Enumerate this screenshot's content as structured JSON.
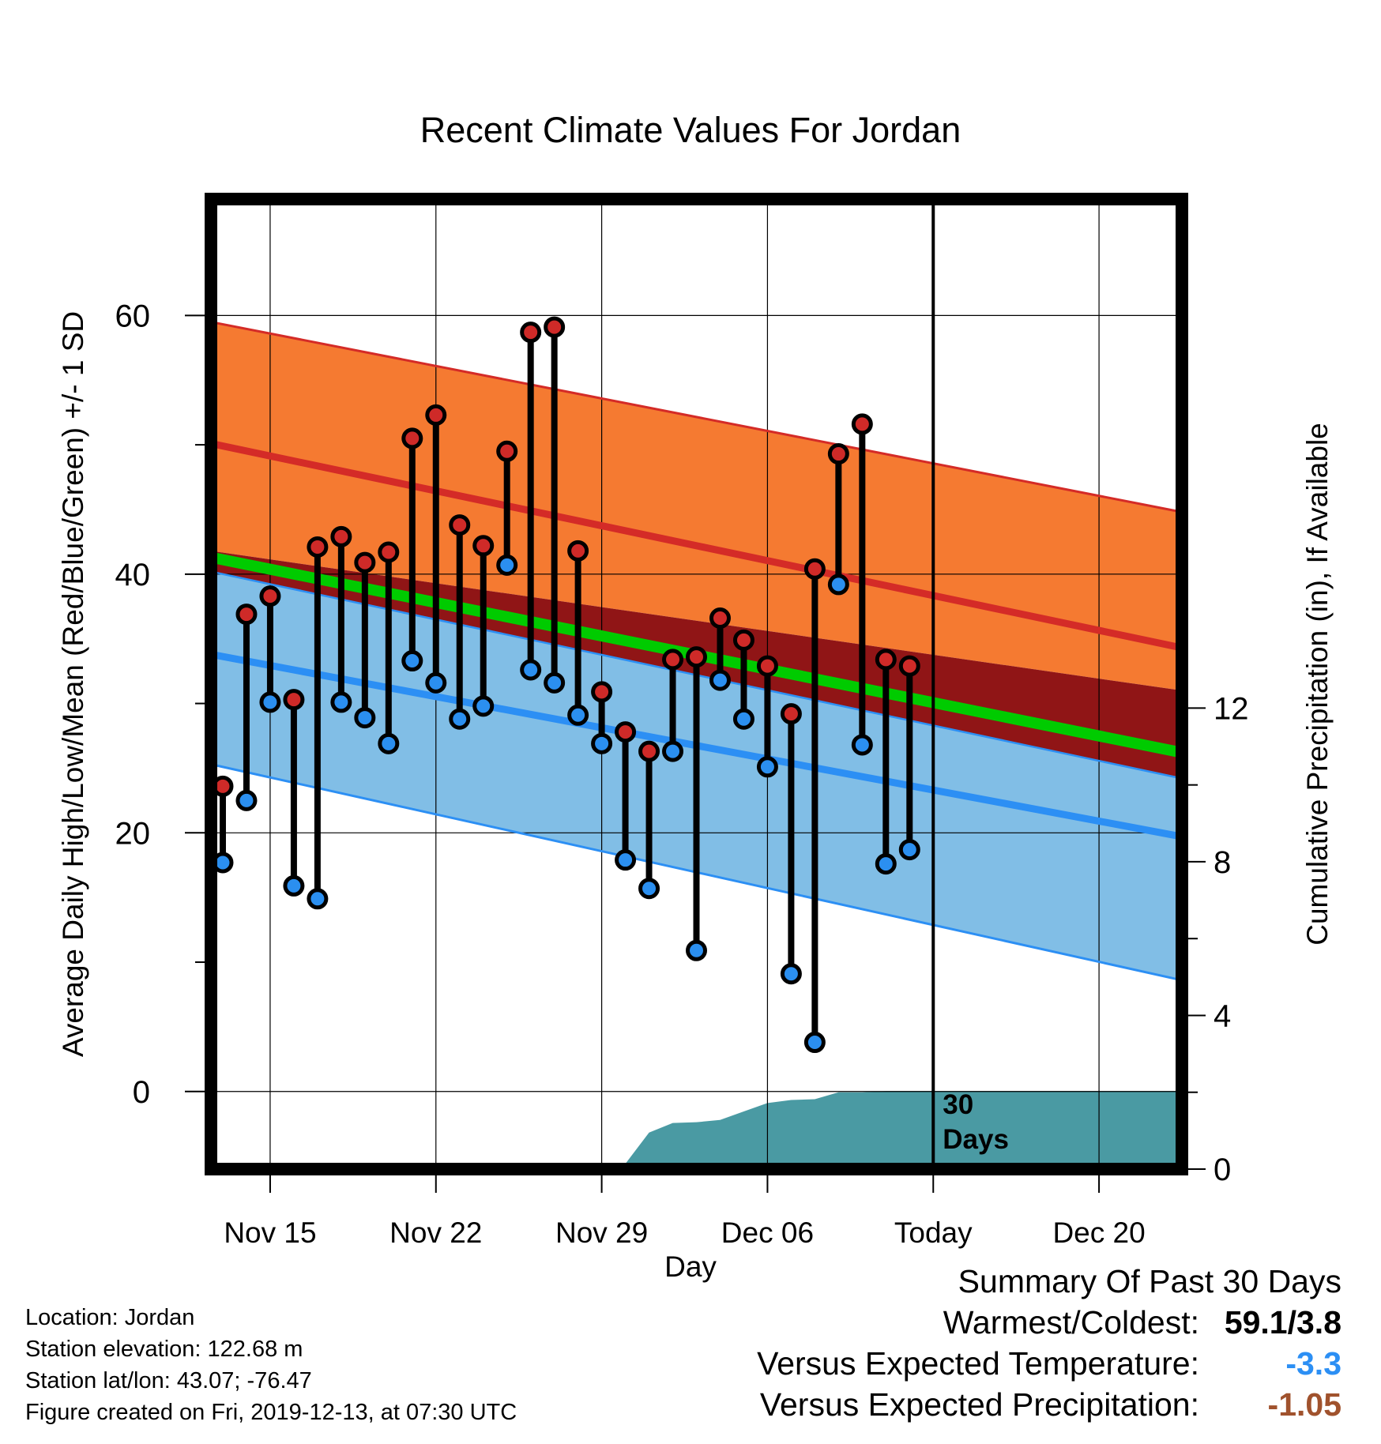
{
  "chart_data": {
    "type": "line",
    "title": "Recent Climate Values For Jordan",
    "xlabel": "Day",
    "ylabel_left": "Average Daily High/Low/Mean (Red/Blue/Green) +/- 1 SD",
    "ylabel_right": "Cumulative Precipitation (in), If Available",
    "x_start": "Nov 12",
    "x_end": "Dec 22",
    "ylim_left": [
      -6,
      69
    ],
    "ylim_right": [
      0,
      25.25
    ],
    "yticks_left": [
      0,
      20,
      40,
      60
    ],
    "yticks_right": [
      0,
      4,
      8,
      12
    ],
    "xtick_labels": [
      {
        "day": 3,
        "label": "Nov 15"
      },
      {
        "day": 10,
        "label": "Nov 22"
      },
      {
        "day": 17,
        "label": "Nov 29"
      },
      {
        "day": 24,
        "label": "Dec 06"
      },
      {
        "day": 31,
        "label": "Today"
      },
      {
        "day": 38,
        "label": "Dec 20"
      }
    ],
    "today_day": 31,
    "today_annotation": "30\nDays",
    "grid": true,
    "normals": {
      "day_start": 0.5,
      "day_end": 41.5,
      "high_mean": [
        50.1,
        34.3
      ],
      "high_upper": [
        59.5,
        44.8
      ],
      "high_lower": [
        41.8,
        31.0
      ],
      "low_mean": [
        33.8,
        19.7
      ],
      "low_upper": [
        40.2,
        24.2
      ],
      "low_lower": [
        25.3,
        8.6
      ],
      "avg_mean": [
        41.3,
        26.2
      ]
    },
    "observed": [
      {
        "day": 1,
        "high": 23.6,
        "low": 17.7
      },
      {
        "day": 2,
        "high": 36.9,
        "low": 22.5
      },
      {
        "day": 3,
        "high": 38.3,
        "low": 30.1
      },
      {
        "day": 4,
        "high": 30.3,
        "low": 15.9
      },
      {
        "day": 5,
        "high": 42.1,
        "low": 14.9
      },
      {
        "day": 6,
        "high": 42.9,
        "low": 30.1
      },
      {
        "day": 7,
        "high": 40.9,
        "low": 28.9
      },
      {
        "day": 8,
        "high": 41.7,
        "low": 26.9
      },
      {
        "day": 9,
        "high": 50.5,
        "low": 33.3
      },
      {
        "day": 10,
        "high": 52.3,
        "low": 31.6
      },
      {
        "day": 11,
        "high": 43.8,
        "low": 28.8
      },
      {
        "day": 12,
        "high": 42.2,
        "low": 29.8
      },
      {
        "day": 13,
        "high": 49.5,
        "low": 40.7
      },
      {
        "day": 14,
        "high": 58.7,
        "low": 32.6
      },
      {
        "day": 15,
        "high": 59.1,
        "low": 31.6
      },
      {
        "day": 16,
        "high": 41.8,
        "low": 29.1
      },
      {
        "day": 17,
        "high": 30.9,
        "low": 26.9
      },
      {
        "day": 18,
        "high": 27.8,
        "low": 17.9
      },
      {
        "day": 19,
        "high": 26.3,
        "low": 15.7
      },
      {
        "day": 20,
        "high": 33.4,
        "low": 26.3
      },
      {
        "day": 21,
        "high": 33.6,
        "low": 10.9
      },
      {
        "day": 22,
        "high": 36.6,
        "low": 31.8
      },
      {
        "day": 23,
        "high": 34.9,
        "low": 28.8
      },
      {
        "day": 24,
        "high": 32.9,
        "low": 25.1
      },
      {
        "day": 25,
        "high": 29.2,
        "low": 9.1
      },
      {
        "day": 26,
        "high": 40.4,
        "low": 3.8
      },
      {
        "day": 27,
        "high": 49.3,
        "low": 39.2
      },
      {
        "day": 28,
        "high": 51.6,
        "low": 26.8
      },
      {
        "day": 29,
        "high": 33.4,
        "low": 17.6
      },
      {
        "day": 30,
        "high": 32.9,
        "low": 18.7
      }
    ],
    "precip_cumulative": {
      "x": [
        0.5,
        15.0,
        16.0,
        17.0,
        18.0,
        19.0,
        20.0,
        21.0,
        22.0,
        23.0,
        24.0,
        25.0,
        26.0,
        27.0,
        28.0,
        29.0,
        30.0,
        31.0,
        41.5
      ],
      "y": [
        0.0,
        0.0,
        0.12,
        0.14,
        0.14,
        0.95,
        1.2,
        1.22,
        1.28,
        1.5,
        1.72,
        1.8,
        1.82,
        2.0,
        2.0,
        2.03,
        2.03,
        2.03,
        2.03
      ]
    },
    "colors": {
      "high_band": "#f57a31",
      "high_line": "#d42b27",
      "overlap_band": "#901516",
      "low_band": "#81bee6",
      "low_line": "#2c8ff4",
      "avg_line": "#00cb00",
      "precip_fill": "#4a9aa3",
      "high_marker": "#cf2a28",
      "low_marker": "#2b8ff0"
    }
  },
  "info": {
    "location": "Location: Jordan",
    "elevation": "Station elevation: 122.68 m",
    "latlon": "Station lat/lon: 43.07; -76.47",
    "created": "Figure created on Fri, 2019-12-13, at 07:30 UTC"
  },
  "summary": {
    "heading": "Summary Of Past 30 Days",
    "warmest_coldest_label": "Warmest/Coldest:",
    "warmest_coldest_value": "59.1/3.8",
    "temp_label": "Versus Expected Temperature:",
    "temp_value": "-3.3",
    "temp_color": "#2c8ff4",
    "precip_label": "Versus Expected Precipitation:",
    "precip_value": "-1.05",
    "precip_color": "#a0522d"
  }
}
